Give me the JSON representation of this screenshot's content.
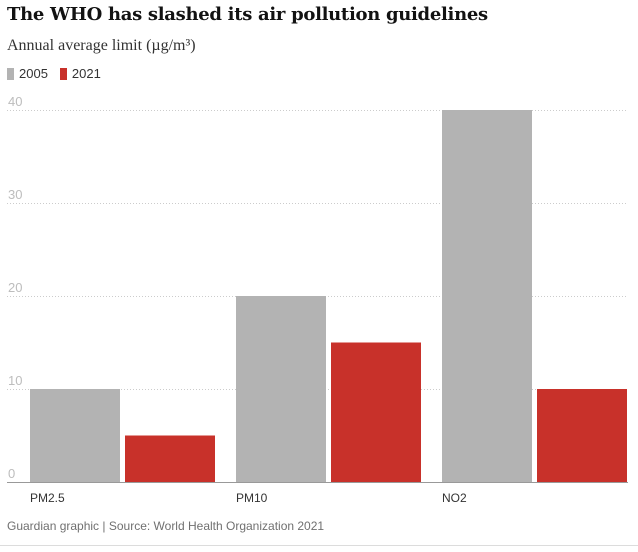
{
  "title": "The WHO has slashed its air pollution guidelines",
  "subtitle": "Annual average limit (µg/m³)",
  "footer": "Guardian graphic | Source: World Health Organization 2021",
  "colors": {
    "s2005": "#b3b3b3",
    "s2021": "#c8312a",
    "grid": "#cccccc",
    "tick": "#bdbdbd",
    "label": "#333333"
  },
  "chart_data": {
    "type": "bar",
    "categories": [
      "PM2.5",
      "PM10",
      "NO2"
    ],
    "series": [
      {
        "name": "2005",
        "values": [
          10,
          20,
          40
        ],
        "color": "#b3b3b3"
      },
      {
        "name": "2021",
        "values": [
          5,
          15,
          10
        ],
        "color": "#c8312a"
      }
    ],
    "yticks": [
      0,
      10,
      20,
      30,
      40
    ],
    "ylim": [
      0,
      40
    ],
    "title": "The WHO has slashed its air pollution guidelines",
    "ylabel": "Annual average limit (µg/m³)",
    "legend_position": "top-left",
    "grid": true
  }
}
